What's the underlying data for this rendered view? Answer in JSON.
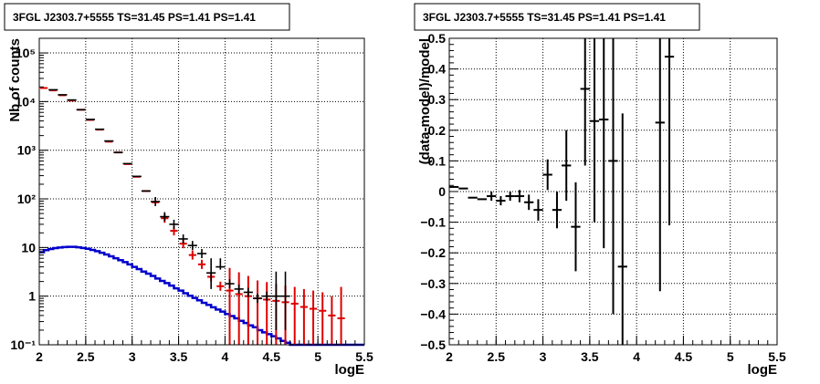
{
  "chart_data": [
    {
      "type": "line",
      "title": "3FGL J2303.7+5555 TS=31.45 PS=1.41 PS=1.41",
      "xlabel": "logE",
      "ylabel": "Nb of counts",
      "xlim": [
        2,
        5.5
      ],
      "ylim": [
        0.1,
        200000
      ],
      "yscale": "log",
      "grid": true,
      "x_ticks": [
        "2",
        "2.5",
        "3",
        "3.5",
        "4",
        "4.5",
        "5",
        "5.5"
      ],
      "y_ticks": [
        {
          "value": 0.1,
          "label": "10⁻¹"
        },
        {
          "value": 1,
          "label": "1"
        },
        {
          "value": 10,
          "label": "10"
        },
        {
          "value": 100,
          "label": "10²"
        },
        {
          "value": 1000,
          "label": "10³"
        },
        {
          "value": 10000,
          "label": "10⁴"
        },
        {
          "value": 100000,
          "label": "10⁵"
        }
      ],
      "series": [
        {
          "kind": "data-points",
          "color": "#000000",
          "x": [
            2.15,
            2.25,
            2.35,
            2.45,
            2.55,
            2.65,
            2.75,
            2.85,
            2.95,
            3.05,
            3.15,
            3.25,
            3.35,
            3.45,
            3.55,
            3.65,
            3.75,
            3.85,
            3.95,
            4.05,
            4.15,
            4.25,
            4.35,
            4.45,
            4.55,
            4.65
          ],
          "y": [
            17500,
            13800,
            10800,
            6800,
            4300,
            2700,
            1550,
            900,
            530,
            290,
            145,
            88,
            43,
            30,
            15,
            11,
            7.5,
            3,
            4,
            1.8,
            1.4,
            1.2,
            0.9,
            1,
            1,
            1
          ],
          "err_low": [
            0,
            0,
            0,
            0,
            0,
            0,
            0,
            0,
            0,
            0,
            0,
            0,
            0,
            0,
            0,
            0,
            0,
            1.6,
            0.5,
            0,
            0,
            0,
            0,
            0,
            0.8,
            0.8
          ],
          "err_high": [
            0,
            0,
            0,
            0,
            0,
            0,
            0,
            0,
            0,
            0,
            0,
            0,
            0,
            0,
            0,
            0,
            0,
            3,
            2,
            0,
            0,
            0,
            0,
            0,
            2.2,
            2.2
          ]
        },
        {
          "kind": "model-histogram",
          "color": "#dd0000",
          "x": [
            2.05,
            2.15,
            2.25,
            2.35,
            2.45,
            2.55,
            2.65,
            2.75,
            2.85,
            2.95,
            3.05,
            3.15,
            3.25,
            3.35,
            3.45,
            3.55,
            3.65,
            3.75,
            3.85,
            3.95,
            4.05,
            4.15,
            4.25,
            4.35,
            4.45,
            4.55,
            4.65,
            4.75,
            4.85,
            4.95,
            5.05,
            5.15,
            5.25
          ],
          "y": [
            19000,
            17000,
            13500,
            10500,
            6800,
            4200,
            2650,
            1500,
            900,
            520,
            285,
            145,
            85,
            40,
            22,
            12,
            7,
            4.5,
            2.5,
            1.6,
            1.3,
            1.1,
            1.0,
            0.9,
            0.85,
            0.8,
            0.75,
            0.7,
            0.6,
            0.55,
            0.5,
            0.4,
            0.35
          ],
          "err_low": [
            0,
            0,
            0,
            0,
            0,
            0,
            0,
            0,
            0,
            0,
            0,
            0,
            0,
            0,
            0,
            0,
            0,
            0,
            0,
            0,
            1.2,
            1.0,
            0.9,
            0.8,
            0.75,
            0.7,
            0.65,
            0.6,
            0.5,
            0.45,
            0.4,
            0.3,
            0.25
          ],
          "err_high": [
            0,
            0,
            0,
            0,
            0,
            0,
            0,
            0,
            0,
            0,
            0,
            0,
            0,
            0,
            0,
            0,
            0,
            0,
            0,
            0,
            2.5,
            2.0,
            1.6,
            1.2,
            1.1,
            1.0,
            0.9,
            0.85,
            0.8,
            0.75,
            0.7,
            0.6,
            1.2
          ]
        },
        {
          "kind": "source-histogram",
          "color": "#0000cc",
          "edges": [
            2.0,
            2.05,
            2.1,
            2.15,
            2.2,
            2.25,
            2.3,
            2.35,
            2.4,
            2.45,
            2.5,
            2.55,
            2.6,
            2.65,
            2.7,
            2.75,
            2.8,
            2.85,
            2.9,
            2.95,
            3.0,
            3.05,
            3.1,
            3.15,
            3.2,
            3.25,
            3.3,
            3.35,
            3.4,
            3.45,
            3.5,
            3.55,
            3.6,
            3.65,
            3.7,
            3.75,
            3.8,
            3.85,
            3.9,
            3.95,
            4.0,
            4.05,
            4.1,
            4.15,
            4.2,
            4.25,
            4.3,
            4.35,
            4.4,
            4.45,
            4.5,
            4.55,
            4.6,
            4.65,
            4.7,
            4.75,
            4.8,
            4.85,
            4.9,
            4.95,
            5.0,
            5.05,
            5.1,
            5.15,
            5.2,
            5.25,
            5.3,
            5.5
          ],
          "values": [
            8.0,
            8.8,
            9.3,
            9.7,
            10.0,
            10.2,
            10.3,
            10.3,
            10.1,
            9.8,
            9.4,
            8.9,
            8.4,
            7.8,
            7.2,
            6.6,
            6.0,
            5.5,
            5.0,
            4.5,
            4.0,
            3.6,
            3.2,
            2.9,
            2.6,
            2.3,
            2.05,
            1.85,
            1.65,
            1.45,
            1.3,
            1.15,
            1.02,
            0.92,
            0.82,
            0.73,
            0.66,
            0.59,
            0.53,
            0.48,
            0.43,
            0.39,
            0.35,
            0.31,
            0.28,
            0.25,
            0.23,
            0.2,
            0.18,
            0.165,
            0.15,
            0.135,
            0.12,
            0.11,
            0.1,
            0.1,
            0.1,
            0.1,
            0.1,
            0.1,
            0.1,
            0.1,
            0.1,
            0.1,
            0.1,
            0.1,
            0.1
          ]
        }
      ]
    },
    {
      "type": "scatter",
      "title": "3FGL J2303.7+5555 TS=31.45 PS=1.41 PS=1.41",
      "xlabel": "logE",
      "ylabel": "(data-model)/model",
      "xlim": [
        2,
        5.5
      ],
      "ylim": [
        -0.5,
        0.5
      ],
      "grid": true,
      "x_ticks": [
        "2",
        "2.5",
        "3",
        "3.5",
        "4",
        "4.5",
        "5",
        "5.5"
      ],
      "y_ticks": [
        "−0.5",
        "−0.4",
        "−0.3",
        "−0.2",
        "−0.1",
        "0",
        "0.1",
        "0.2",
        "0.3",
        "0.4",
        "0.5"
      ],
      "series": [
        {
          "color": "#000000",
          "x": [
            2.05,
            2.15,
            2.25,
            2.35,
            2.45,
            2.55,
            2.65,
            2.75,
            2.85,
            2.95,
            3.05,
            3.15,
            3.25,
            3.35,
            3.45,
            3.55,
            3.65,
            3.75,
            3.85,
            4.25,
            4.35
          ],
          "y": [
            0.015,
            0.01,
            -0.02,
            -0.025,
            -0.015,
            -0.03,
            -0.015,
            -0.015,
            -0.035,
            -0.06,
            0.055,
            -0.06,
            0.085,
            -0.115,
            0.335,
            0.23,
            0.235,
            0.1,
            -0.245,
            0.225,
            0.44
          ],
          "err": [
            0,
            0,
            0,
            0,
            0.015,
            0.015,
            0.015,
            0.02,
            0.025,
            0.035,
            0.05,
            0.06,
            0.115,
            0.145,
            0.25,
            0.33,
            0.42,
            0.5,
            0.5,
            0.55,
            0.55
          ]
        }
      ]
    }
  ]
}
